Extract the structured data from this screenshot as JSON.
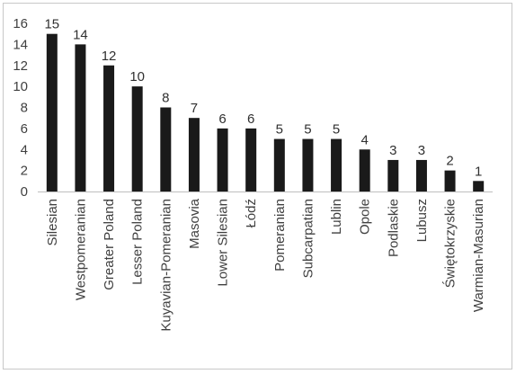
{
  "chart_data": {
    "type": "bar",
    "categories": [
      "Silesian",
      "Westpomeranian",
      "Greater Poland",
      "Lesser Poland",
      "Kuyavian-Pomeranian",
      "Masovia",
      "Lower Silesian",
      "Łódź",
      "Pomeranian",
      "Subcarpatian",
      "Lublin",
      "Opole",
      "Podlaskie",
      "Lubusz",
      "Świętokrzyskie",
      "Warmian-Masurian"
    ],
    "values": [
      15,
      14,
      12,
      10,
      8,
      7,
      6,
      6,
      5,
      5,
      5,
      4,
      3,
      3,
      2,
      1
    ],
    "title": "",
    "xlabel": "",
    "ylabel": "",
    "ylim": [
      0,
      16
    ],
    "yticks": [
      0,
      2,
      4,
      6,
      8,
      10,
      12,
      14,
      16
    ],
    "grid": false,
    "legend": "none",
    "bar_color": "#1a1a1a",
    "axis_color": "#bfbfbf"
  }
}
